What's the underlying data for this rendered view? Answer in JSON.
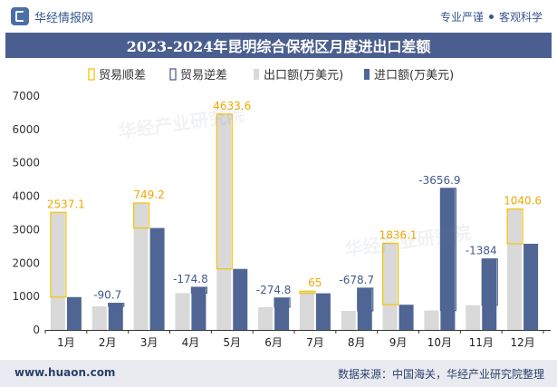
{
  "header": {
    "brand": "华经情报网",
    "tagline_left": "专业严谨",
    "tagline_right": "客观科学"
  },
  "footer": {
    "site": "www.huaon.com",
    "source": "数据来源：中国海关，华经产业研究院整理"
  },
  "colors": {
    "export": "#d9d9d9",
    "import": "#4f6594",
    "surplus": "#f5c400",
    "deficit": "#4f6594",
    "label_surplus": "#f0a800",
    "label_deficit": "#44598a"
  },
  "chart_data": {
    "type": "bar",
    "title": "2023-2024年昆明综合保税区月度进出口差额",
    "categories": [
      "1月",
      "2月",
      "3月",
      "4月",
      "5月",
      "6月",
      "7月",
      "8月",
      "9月",
      "10月",
      "11月",
      "12月"
    ],
    "series": [
      {
        "name": "出口额(万美元)",
        "values": [
          3520,
          705,
          3800,
          1100,
          6460,
          680,
          1160,
          570,
          2590,
          580,
          740,
          3620
        ]
      },
      {
        "name": "进口额(万美元)",
        "values": [
          983,
          796,
          3051,
          1275,
          1826,
          955,
          1095,
          1249,
          754,
          4237,
          2124,
          2579
        ]
      }
    ],
    "balance": {
      "legend_surplus": "贸易顺差",
      "legend_deficit": "贸易逆差",
      "labels": [
        "2537.1",
        "-90.7",
        "749.2",
        "-174.8",
        "4633.6",
        "-274.8",
        "65",
        "-678.7",
        "1836.1",
        "-3656.9",
        "-1384",
        "1040.6"
      ],
      "values": [
        2537.1,
        -90.7,
        749.2,
        -174.8,
        4633.6,
        -274.8,
        65,
        -678.7,
        1836.1,
        -3656.9,
        -1384,
        1040.6
      ]
    },
    "ylim": [
      0,
      7000
    ],
    "yticks": [
      0,
      1000,
      2000,
      3000,
      4000,
      5000,
      6000,
      7000
    ],
    "legend_position": "top",
    "grid": false
  }
}
